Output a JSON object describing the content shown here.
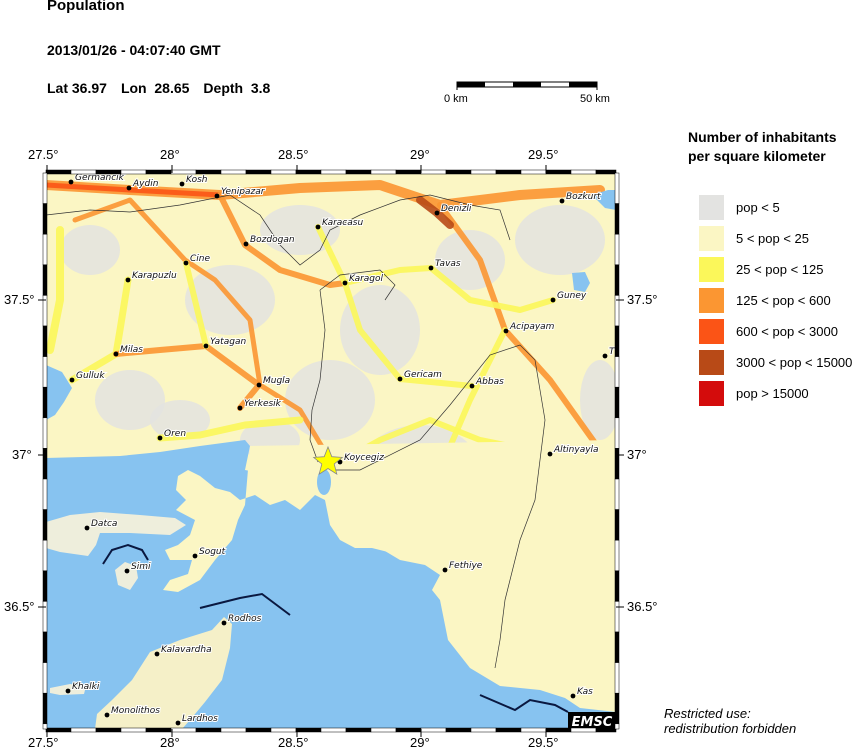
{
  "header": {
    "title": "Population",
    "datetime": "2013/01/26 - 04:07:40 GMT",
    "lat_label": "Lat",
    "lat": "36.97",
    "lon_label": "Lon",
    "lon": "28.65",
    "depth_label": "Depth",
    "depth": "3.8"
  },
  "scale_bar": {
    "start": "0 km",
    "end": "50 km"
  },
  "axes": {
    "lon_ticks": [
      "27.5°",
      "28°",
      "28.5°",
      "29°",
      "29.5°"
    ],
    "lat_ticks": [
      "37.5°",
      "37°",
      "36.5°"
    ]
  },
  "map": {
    "extent": {
      "lon": [
        27.5,
        29.8
      ],
      "lat": [
        36.1,
        37.92
      ]
    },
    "epicenter": {
      "lat": 36.97,
      "lon": 28.65,
      "icon": "star-icon",
      "color": "#ffff00"
    },
    "sea_color": "#87c3f0",
    "cities": [
      "Germancik",
      "Aydin",
      "Kosh",
      "Yenipazar",
      "Karacasu",
      "Bozdogan",
      "Cine",
      "Karapuzlu",
      "Karagol",
      "Tavas",
      "Denizli",
      "Bozkurt",
      "Guney",
      "Acipayam",
      "T",
      "Milas",
      "Yatagan",
      "Gulluk",
      "Mugla",
      "Yerkesik",
      "Gericam",
      "Abbas",
      "Oren",
      "Altinyayla",
      "Koycegiz",
      "Datca",
      "Sogut",
      "Simi",
      "Rodhos",
      "Kalavardha",
      "Khalki",
      "Monolithos",
      "Lardhos",
      "Fethiye",
      "Kas"
    ],
    "badge": "EMSC"
  },
  "legend": {
    "title_line1": "Number of inhabitants",
    "title_line2": "per square kilometer",
    "items": [
      {
        "label": "pop < 5",
        "color": "#e3e3e1"
      },
      {
        "label": "5 < pop < 25",
        "color": "#fbf6c4"
      },
      {
        "label": "25 < pop < 125",
        "color": "#fbf75a"
      },
      {
        "label": "125 < pop < 600",
        "color": "#fb9632"
      },
      {
        "label": "600 < pop < 3000",
        "color": "#fb5416"
      },
      {
        "label": "3000 < pop < 15000",
        "color": "#b84a17"
      },
      {
        "label": "pop > 15000",
        "color": "#d40c0c"
      }
    ]
  },
  "footer": {
    "line1": "Restricted use:",
    "line2": "redistribution forbidden"
  }
}
